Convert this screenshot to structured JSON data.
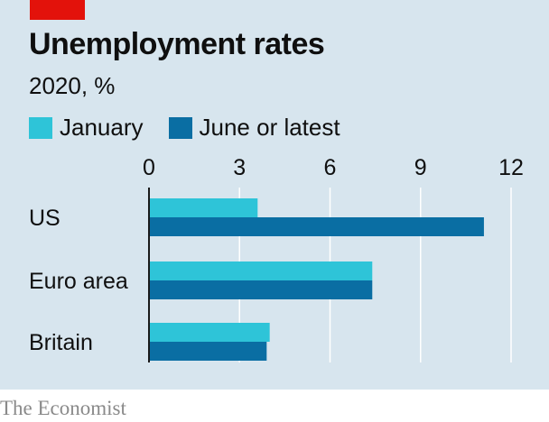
{
  "header": {
    "title": "Unemployment rates",
    "subtitle": "2020, %"
  },
  "source": "The Economist",
  "colors": {
    "background": "#d7e5ee",
    "tag": "#e3120b",
    "series_january": "#2ec4d8",
    "series_june": "#0a6ea3",
    "gridline": "#ffffff",
    "axis": "#1a1a1a",
    "text": "#0f0f0f"
  },
  "chart_data": {
    "type": "bar",
    "orientation": "horizontal",
    "categories": [
      "US",
      "Euro area",
      "Britain"
    ],
    "series": [
      {
        "name": "January",
        "values": [
          3.6,
          7.4,
          4.0
        ]
      },
      {
        "name": "June or latest",
        "values": [
          11.1,
          7.4,
          3.9
        ]
      }
    ],
    "xlim": [
      0,
      12
    ],
    "ticks": [
      0,
      3,
      6,
      9,
      12
    ],
    "tick_position": "top",
    "grid": true,
    "legend_position": "top-left"
  }
}
